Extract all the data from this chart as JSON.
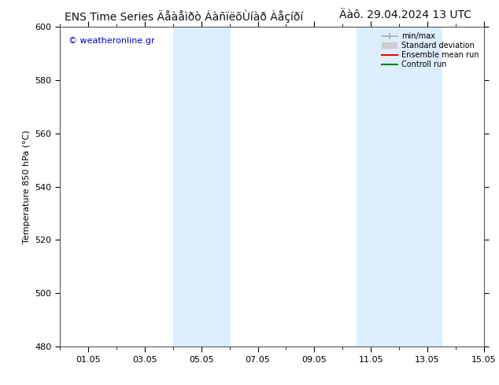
{
  "title_right": "Äàô. 29.04.2024 13 UTC",
  "ylabel": "Temperature 850 hPa (°C)",
  "background_color": "#ffffff",
  "plot_bg_color": "#ffffff",
  "shade_color": "#ddeeff",
  "watermark": "© weatheronline.gr",
  "watermark_color": "#0000cc",
  "xlim_start": 0,
  "xlim_end": 15,
  "ylim_bottom": 480,
  "ylim_top": 600,
  "yticks": [
    480,
    500,
    520,
    540,
    560,
    580,
    600
  ],
  "xtick_labels": [
    "01.05",
    "03.05",
    "05.05",
    "07.05",
    "09.05",
    "11.05",
    "13.05",
    "15.05"
  ],
  "xtick_positions": [
    1,
    3,
    5,
    7,
    9,
    11,
    13,
    15
  ],
  "shade_bands": [
    {
      "x_start": 4.0,
      "x_end": 6.0
    },
    {
      "x_start": 10.5,
      "x_end": 13.5
    }
  ],
  "legend_labels": [
    "min/max",
    "Standard deviation",
    "Ensemble mean run",
    "Controll run"
  ],
  "legend_line_colors": [
    "#aaaaaa",
    "#cccccc",
    "#ff0000",
    "#008000"
  ],
  "title_fontsize": 10,
  "axis_fontsize": 8,
  "tick_fontsize": 8
}
